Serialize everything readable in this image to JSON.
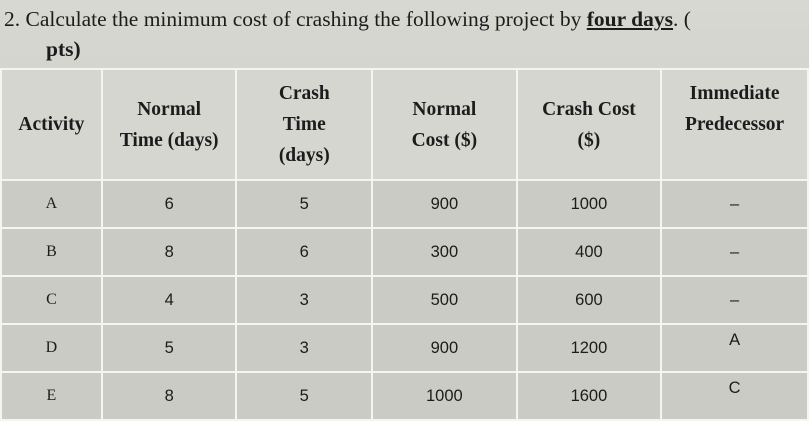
{
  "question": {
    "line1_prefix": "2.  Calculate the minimum cost of crashing the following project by ",
    "line1_emphasis": "four days",
    "line1_suffix": ". (",
    "line2": "pts)"
  },
  "table": {
    "headers": [
      [
        "Activity"
      ],
      [
        "Normal",
        "Time (days)"
      ],
      [
        "Crash",
        "Time",
        "(days)"
      ],
      [
        "Normal",
        "Cost ($)"
      ],
      [
        "Crash Cost",
        "($)"
      ],
      [
        "Immediate",
        "Predecessor"
      ]
    ],
    "rows": [
      {
        "activity": "A",
        "normal_time": "6",
        "crash_time": "5",
        "normal_cost": "900",
        "crash_cost": "1000",
        "predecessor": "–"
      },
      {
        "activity": "B",
        "normal_time": "8",
        "crash_time": "6",
        "normal_cost": "300",
        "crash_cost": "400",
        "predecessor": "–"
      },
      {
        "activity": "C",
        "normal_time": "4",
        "crash_time": "3",
        "normal_cost": "500",
        "crash_cost": "600",
        "predecessor": "–"
      },
      {
        "activity": "D",
        "normal_time": "5",
        "crash_time": "3",
        "normal_cost": "900",
        "crash_cost": "1200",
        "predecessor": "A"
      },
      {
        "activity": "E",
        "normal_time": "8",
        "crash_time": "5",
        "normal_cost": "1000",
        "crash_cost": "1600",
        "predecessor": "C"
      }
    ]
  }
}
